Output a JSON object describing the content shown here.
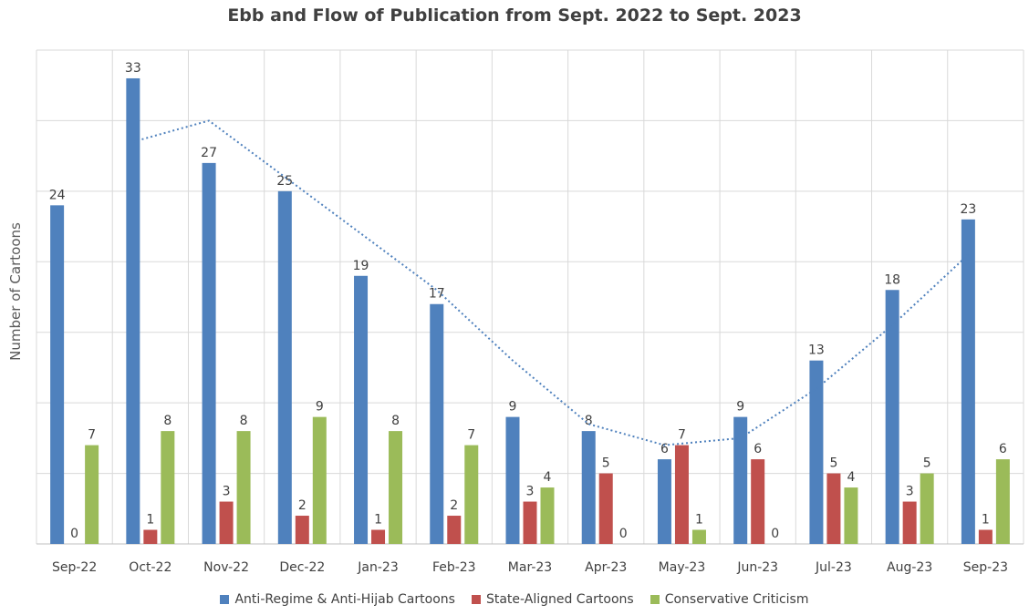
{
  "chart_data": {
    "type": "bar",
    "title": "Ebb and Flow of Publication from Sept. 2022 to Sept. 2023",
    "xlabel": "",
    "ylabel": "Number of Cartoons",
    "ylim": [
      0,
      35
    ],
    "grid": true,
    "legend_position": "bottom",
    "categories": [
      "Sep-22",
      "Oct-22",
      "Nov-22",
      "Dec-22",
      "Jan-23",
      "Feb-23",
      "Mar-23",
      "Apr-23",
      "May-23",
      "Jun-23",
      "Jul-23",
      "Aug-23",
      "Sep-23"
    ],
    "series": [
      {
        "name": "Anti-Regime & Anti-Hijab Cartoons",
        "color": "#4F81BD",
        "values": [
          24,
          33,
          27,
          25,
          19,
          17,
          9,
          8,
          6,
          9,
          13,
          18,
          23
        ]
      },
      {
        "name": "State-Aligned Cartoons",
        "color": "#C0504D",
        "values": [
          0,
          1,
          3,
          2,
          1,
          2,
          3,
          5,
          7,
          6,
          5,
          3,
          1
        ]
      },
      {
        "name": "Conservative Criticism",
        "color": "#9BBB59",
        "values": [
          7,
          8,
          8,
          9,
          8,
          7,
          4,
          0,
          1,
          0,
          4,
          5,
          6
        ]
      }
    ],
    "trendline": {
      "type": "moving-average",
      "series": "Anti-Regime & Anti-Hijab Cartoons",
      "color": "#4F81BD",
      "style": "dotted"
    }
  }
}
